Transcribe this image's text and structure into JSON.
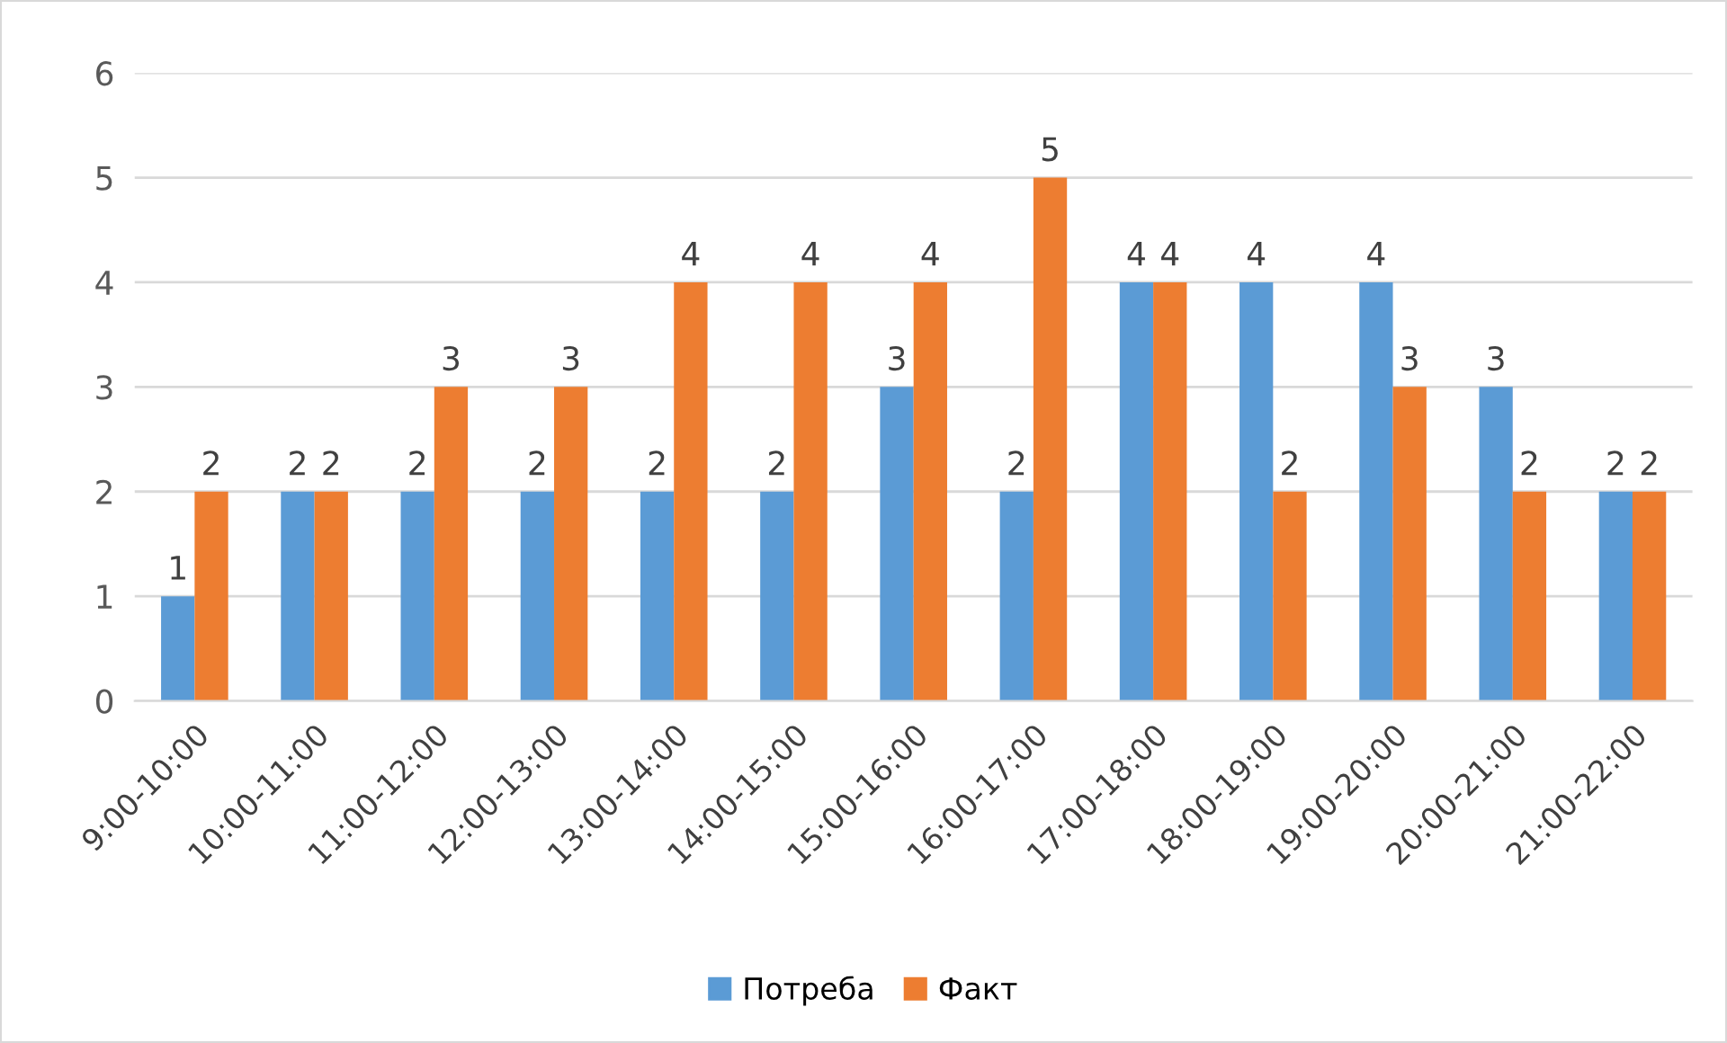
{
  "chart_data": {
    "type": "bar",
    "categories": [
      "9:00-10:00",
      "10:00-11:00",
      "11:00-12:00",
      "12:00-13:00",
      "13:00-14:00",
      "14:00-15:00",
      "15:00-16:00",
      "16:00-17:00",
      "17:00-18:00",
      "18:00-19:00",
      "19:00-20:00",
      "20:00-21:00",
      "21:00-22:00"
    ],
    "series": [
      {
        "name": "Потреба",
        "color": "#5b9bd5",
        "values": [
          1,
          2,
          2,
          2,
          2,
          2,
          3,
          2,
          4,
          4,
          4,
          3,
          2
        ]
      },
      {
        "name": "Факт",
        "color": "#ed7d31",
        "values": [
          2,
          2,
          3,
          3,
          4,
          4,
          4,
          5,
          4,
          2,
          3,
          2,
          2
        ]
      }
    ],
    "ylim": [
      0,
      6
    ],
    "yticks": [
      0,
      1,
      2,
      3,
      4,
      5,
      6
    ],
    "grid": "y",
    "legend": "bottom",
    "data_labels": true
  }
}
